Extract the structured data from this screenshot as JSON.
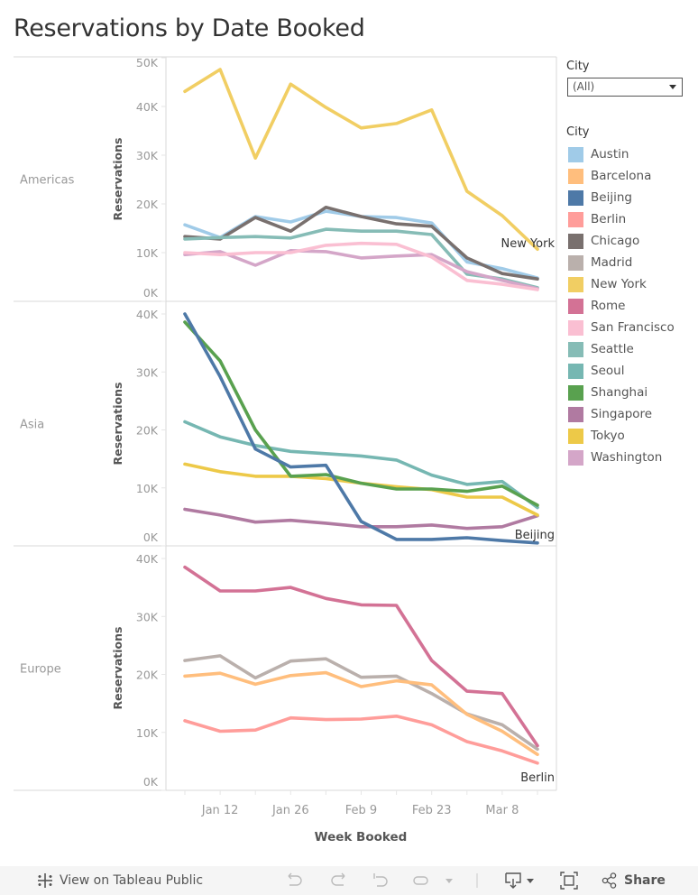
{
  "title": "Reservations by Date Booked",
  "filter": {
    "label": "City",
    "value": "(All)"
  },
  "legend": {
    "title": "City",
    "items": [
      {
        "name": "Austin",
        "color": "#a0cbe8"
      },
      {
        "name": "Barcelona",
        "color": "#ffbe7d"
      },
      {
        "name": "Beijing",
        "color": "#4e79a7"
      },
      {
        "name": "Berlin",
        "color": "#ff9d9a"
      },
      {
        "name": "Chicago",
        "color": "#79706e"
      },
      {
        "name": "Madrid",
        "color": "#bab0ac"
      },
      {
        "name": "New York",
        "color": "#f1ce63"
      },
      {
        "name": "Rome",
        "color": "#d37295"
      },
      {
        "name": "San Francisco",
        "color": "#fabfd2"
      },
      {
        "name": "Seattle",
        "color": "#86bcb6"
      },
      {
        "name": "Seoul",
        "color": "#76b7b2"
      },
      {
        "name": "Shanghai",
        "color": "#59a14f"
      },
      {
        "name": "Singapore",
        "color": "#b07aa1"
      },
      {
        "name": "Tokyo",
        "color": "#edc948"
      },
      {
        "name": "Washington",
        "color": "#d4a6c8"
      }
    ]
  },
  "toolbar": {
    "view_on_label": "View on Tableau Public",
    "share_label": "Share"
  },
  "chart_data": {
    "type": "line",
    "title": "Reservations by Date Booked",
    "xlabel": "Week Booked",
    "ylabel": "Reservations",
    "x": [
      "Jan 5",
      "Jan 12",
      "Jan 19",
      "Jan 26",
      "Feb 2",
      "Feb 9",
      "Feb 16",
      "Feb 23",
      "Mar 1",
      "Mar 8",
      "Mar 15"
    ],
    "x_tick_labels": [
      "Jan 12",
      "Jan 26",
      "Feb 9",
      "Feb 23",
      "Mar 8"
    ],
    "grid": false,
    "legend": "right",
    "panels": [
      {
        "region": "Americas",
        "ylim": [
          0,
          50000
        ],
        "yticks": [
          "0K",
          "10K",
          "20K",
          "30K",
          "40K",
          "50K"
        ],
        "end_label": "New York",
        "series": [
          {
            "name": "Austin",
            "values": [
              15700,
              13100,
              17400,
              16300,
              18500,
              17400,
              17200,
              16100,
              8100,
              6700,
              4800
            ]
          },
          {
            "name": "Chicago",
            "values": [
              13300,
              12800,
              17200,
              14400,
              19300,
              17400,
              15900,
              15400,
              8900,
              5700,
              4600
            ]
          },
          {
            "name": "Seattle",
            "values": [
              12800,
              13100,
              13300,
              13000,
              14800,
              14400,
              14400,
              13700,
              5600,
              4600,
              2800
            ]
          },
          {
            "name": "Washington",
            "values": [
              9600,
              10200,
              7400,
              10400,
              10200,
              8900,
              9300,
              9600,
              6100,
              4300,
              2600
            ]
          },
          {
            "name": "San Francisco",
            "values": [
              10000,
              9600,
              10000,
              10000,
              11500,
              11900,
              11700,
              9100,
              4300,
              3500,
              2400
            ]
          },
          {
            "name": "New York",
            "values": [
              43100,
              47600,
              29400,
              44600,
              39800,
              35600,
              36500,
              39300,
              22600,
              17600,
              10700
            ]
          }
        ]
      },
      {
        "region": "Asia",
        "ylim": [
          0,
          40000
        ],
        "yticks": [
          "0K",
          "10K",
          "20K",
          "30K",
          "40K"
        ],
        "end_label": "Beijing",
        "series": [
          {
            "name": "Singapore",
            "values": [
              6300,
              5300,
              4100,
              4400,
              3900,
              3300,
              3300,
              3600,
              3000,
              3300,
              5200
            ]
          },
          {
            "name": "Tokyo",
            "values": [
              14100,
              12800,
              12000,
              12000,
              11600,
              10800,
              10200,
              9700,
              8400,
              8400,
              5300
            ]
          },
          {
            "name": "Seoul",
            "values": [
              21400,
              18800,
              17300,
              16300,
              15900,
              15500,
              14800,
              12200,
              10600,
              11100,
              6600
            ]
          },
          {
            "name": "Shanghai",
            "values": [
              38600,
              31900,
              20000,
              12000,
              12300,
              10800,
              9800,
              9800,
              9400,
              10300,
              7000
            ]
          },
          {
            "name": "Beijing",
            "values": [
              40000,
              29200,
              16700,
              13600,
              13900,
              4200,
              1100,
              1100,
              1400,
              900,
              500
            ]
          }
        ]
      },
      {
        "region": "Europe",
        "ylim": [
          0,
          40000
        ],
        "yticks": [
          "0K",
          "10K",
          "20K",
          "30K",
          "40K"
        ],
        "end_label": "Berlin",
        "series": [
          {
            "name": "Berlin",
            "values": [
              12000,
              10200,
              10400,
              12500,
              12200,
              12300,
              12800,
              11300,
              8400,
              6800,
              4700
            ]
          },
          {
            "name": "Madrid",
            "values": [
              22400,
              23200,
              19400,
              22300,
              22700,
              19500,
              19700,
              16700,
              13200,
              11300,
              7100
            ]
          },
          {
            "name": "Barcelona",
            "values": [
              19700,
              20200,
              18300,
              19800,
              20300,
              17900,
              18900,
              18200,
              13100,
              10200,
              6200
            ]
          },
          {
            "name": "Rome",
            "values": [
              38500,
              34400,
              34400,
              35000,
              33100,
              32000,
              31900,
              22400,
              17100,
              16700,
              7700
            ]
          }
        ]
      }
    ]
  }
}
